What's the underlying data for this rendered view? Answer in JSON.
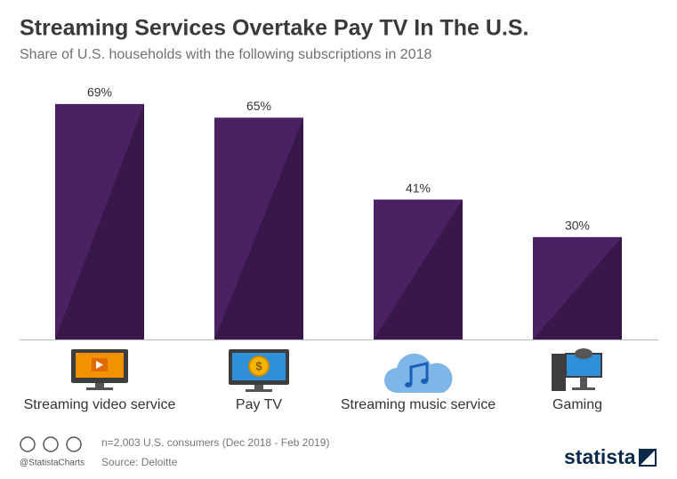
{
  "chart_data": {
    "type": "bar",
    "title": "Streaming Services Overtake Pay TV In The U.S.",
    "subtitle": "Share of U.S. households with the following subscriptions in 2018",
    "categories": [
      "Streaming video service",
      "Pay TV",
      "Streaming music service",
      "Gaming"
    ],
    "values": [
      69,
      65,
      41,
      30
    ],
    "value_labels": [
      "69%",
      "65%",
      "41%",
      "30%"
    ],
    "color": "#4b2163",
    "note": "n=2,003 U.S. consumers (Dec 2018 - Feb 2019)",
    "source": "Source: Deloitte",
    "handle": "@StatistaCharts",
    "brand": "statista"
  }
}
